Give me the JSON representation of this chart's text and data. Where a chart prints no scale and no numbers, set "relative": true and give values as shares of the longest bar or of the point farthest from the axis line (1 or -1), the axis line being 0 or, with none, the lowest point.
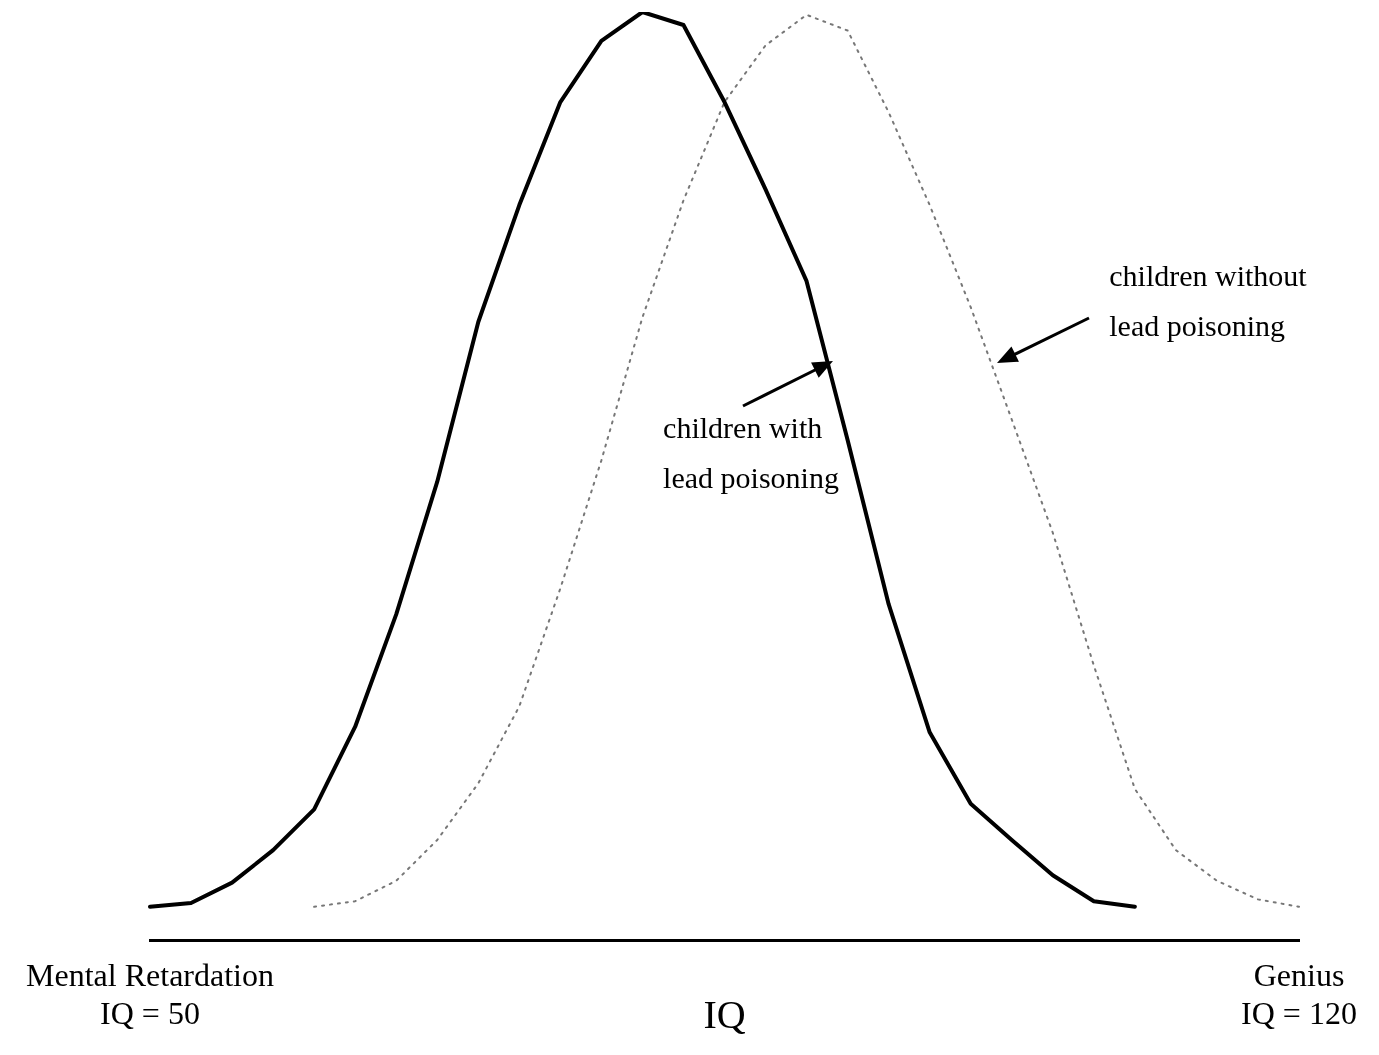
{
  "chart_data": {
    "type": "line",
    "relative": true,
    "xlabel": "IQ",
    "categories": [
      "Mental Retardation\nIQ = 50",
      null,
      null,
      null,
      null,
      null,
      null,
      null,
      null,
      null,
      null,
      null,
      null,
      null,
      null,
      null,
      null,
      null,
      null,
      null,
      null,
      null,
      null,
      null,
      null,
      null,
      null,
      null,
      "Genius\nIQ = 120"
    ],
    "grid": false,
    "legend": false,
    "marker": "none",
    "series": [
      {
        "color": "#000000",
        "line_style": "solid",
        "values": [
          0.036,
          0.04,
          0.062,
          0.097,
          0.141,
          0.23,
          0.351,
          0.494,
          0.666,
          0.792,
          0.903,
          0.969,
          1,
          0.986,
          0.903,
          0.809,
          0.71,
          0.539,
          0.362,
          0.224,
          0.147,
          0.108,
          0.07,
          0.042,
          0.036,
          null,
          null,
          null,
          null
        ]
      },
      {
        "color": "#777777",
        "line_style": "dotted",
        "values": [
          null,
          null,
          null,
          null,
          0.036,
          0.042,
          0.064,
          0.108,
          0.169,
          0.252,
          0.379,
          0.517,
          0.671,
          0.797,
          0.903,
          0.964,
          0.997,
          0.98,
          0.892,
          0.792,
          0.682,
          0.561,
          0.439,
          0.296,
          0.163,
          0.097,
          0.064,
          0.044,
          0.036
        ]
      }
    ],
    "annotations": [
      "children with\nlead poisoning",
      "children without\nlead poisoning"
    ]
  }
}
